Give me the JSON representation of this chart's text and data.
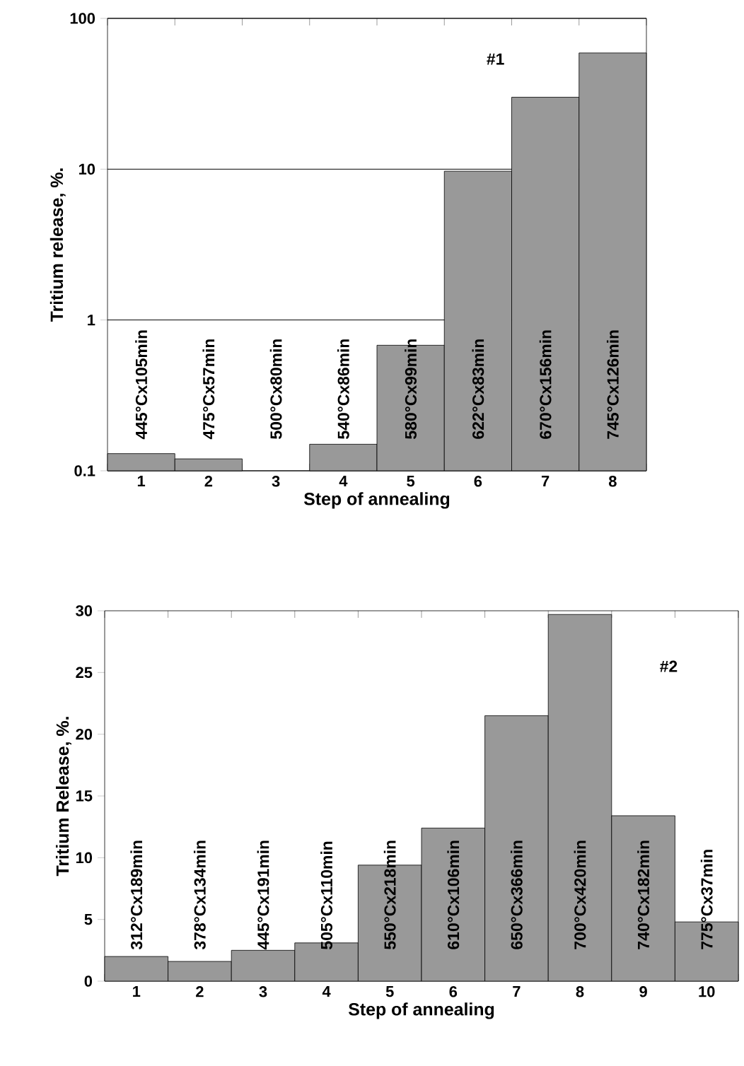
{
  "chart_data": [
    {
      "type": "bar",
      "annotations": [
        "445°Cx105min",
        "475°Cx57min",
        "500°Cx80min",
        "540°Cx86min",
        "580°Cx99min",
        "622°Cx83min",
        "670°Cx156min",
        "745°Cx126min",
        "#1"
      ],
      "xlabel": "Step of annealing",
      "ylabel": "Tritium release,  %.",
      "categories": [
        "1",
        "2",
        "3",
        "4",
        "5",
        "6",
        "7",
        "8"
      ],
      "values": [
        0.13,
        0.12,
        null,
        0.15,
        0.68,
        9.7,
        30,
        59
      ],
      "color": "#999999",
      "log": "y",
      "ylim": [
        0.1,
        100
      ],
      "yticks": [
        0.1,
        1,
        10,
        100
      ],
      "grid": "y"
    },
    {
      "type": "bar",
      "annotations": [
        "312°Cx189min",
        "378°Cx134min",
        "445°Cx191min",
        "505°Cx110min",
        "550°Cx218min",
        "610°Cx106min",
        "650°Cx366min",
        "700°Cx420min",
        "740°Cx182min",
        "775°Cx37min",
        "#2"
      ],
      "xlabel": "Step of annealing",
      "ylabel": "Tritium Release,  %.",
      "categories": [
        "1",
        "2",
        "3",
        "4",
        "5",
        "6",
        "7",
        "8",
        "9",
        "10"
      ],
      "values": [
        2.0,
        1.6,
        2.5,
        3.1,
        9.4,
        12.4,
        21.5,
        29.7,
        13.4,
        4.8
      ],
      "color": "#999999",
      "ylim": [
        0,
        30
      ],
      "yticks": [
        0,
        5,
        10,
        15,
        20,
        25,
        30
      ]
    }
  ]
}
